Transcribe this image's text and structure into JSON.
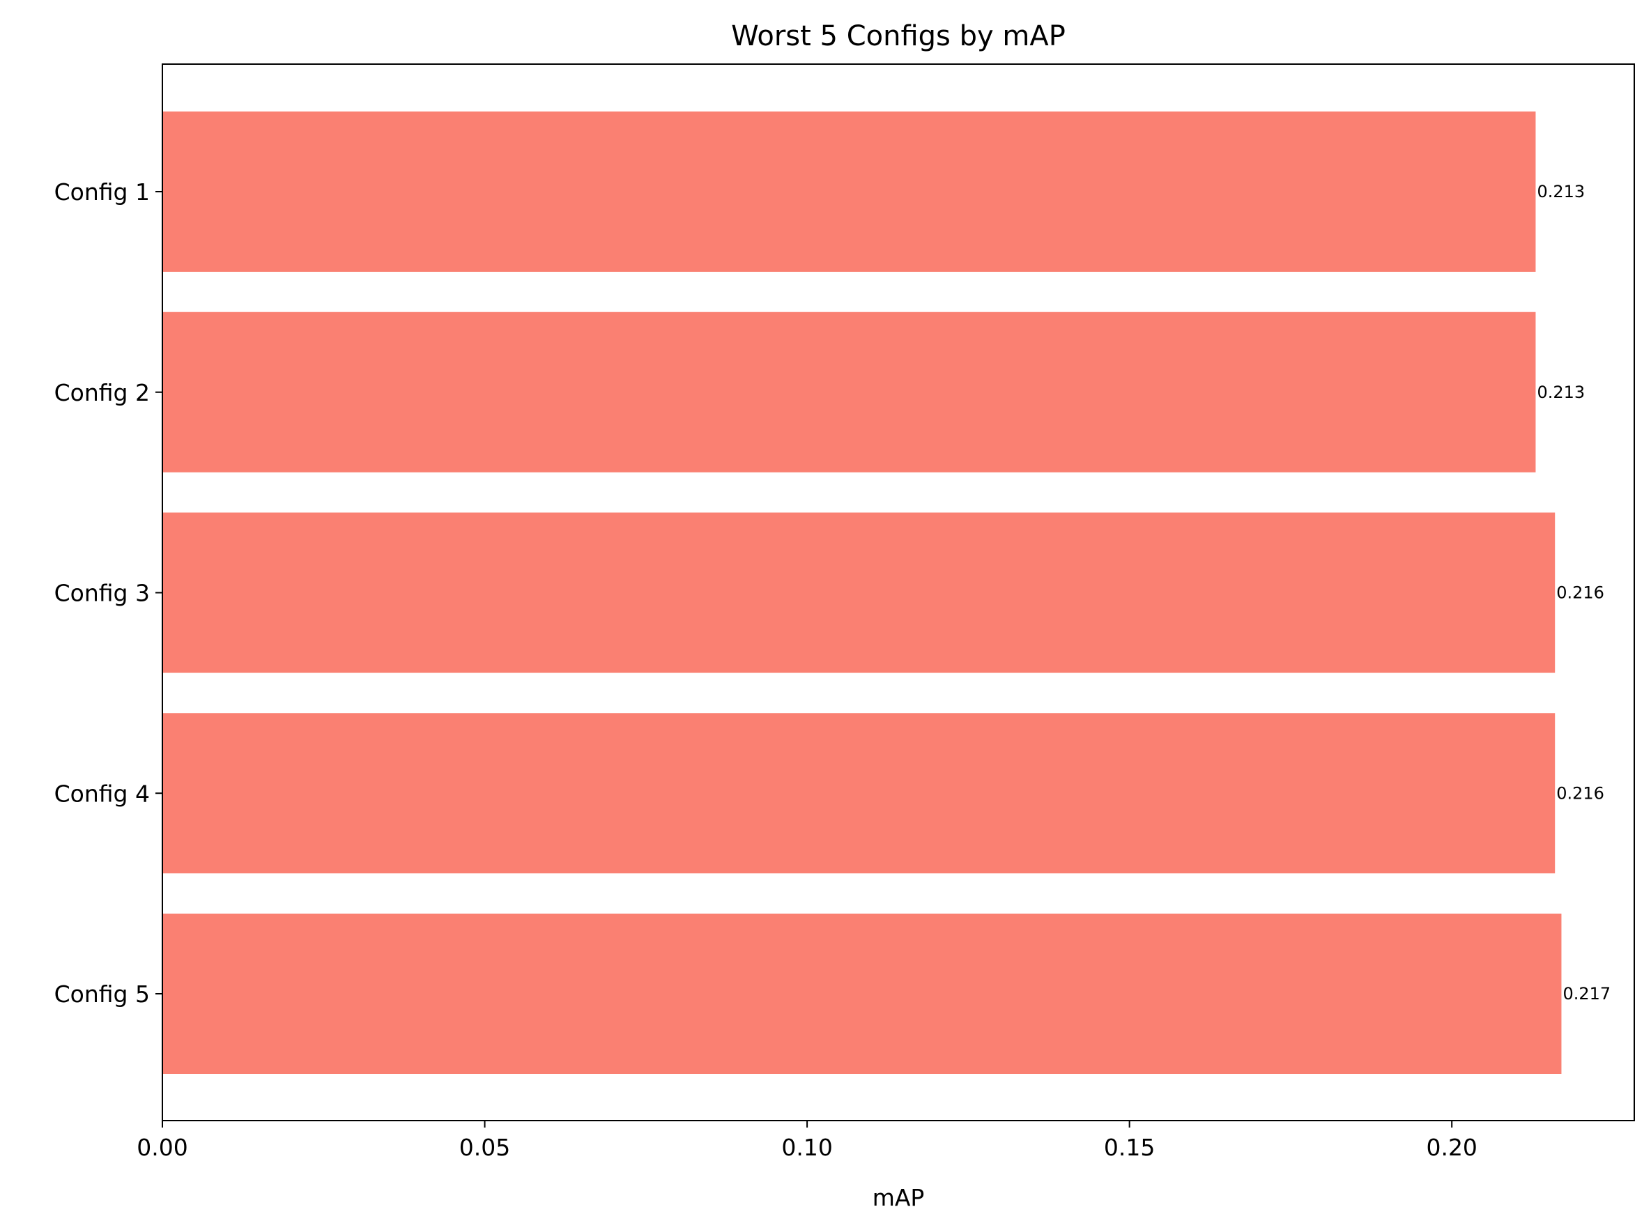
{
  "chart_data": {
    "type": "bar",
    "orientation": "horizontal",
    "title": "Worst 5 Configs by mAP",
    "xlabel": "mAP",
    "ylabel": "",
    "categories": [
      "Config 1",
      "Config 2",
      "Config 3",
      "Config 4",
      "Config 5"
    ],
    "values": [
      0.213,
      0.213,
      0.216,
      0.216,
      0.217
    ],
    "value_labels": [
      "0.213",
      "0.213",
      "0.216",
      "0.216",
      "0.217"
    ],
    "xlim": [
      0,
      0.2283
    ],
    "xticks": [
      0.0,
      0.05,
      0.1,
      0.15,
      0.2
    ],
    "xtick_labels": [
      "0.00",
      "0.05",
      "0.10",
      "0.15",
      "0.20"
    ],
    "grid": false,
    "legend": "none",
    "bar_color": "#fa8072"
  }
}
